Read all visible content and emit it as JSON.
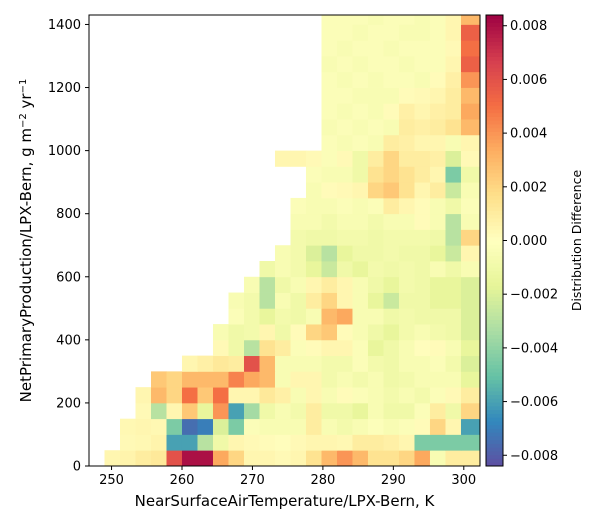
{
  "chart_data": {
    "type": "heatmap",
    "title": "",
    "xlabel": "NearSurfaceAirTemperature/LPX-Bern,  K",
    "ylabel_text": "NetPrimaryProduction/LPX-Bern,  g m",
    "ylabel_exp1": "−2",
    "ylabel_mid": " yr",
    "ylabel_exp2": "−1",
    "xlim": [
      246.8,
      302.3
    ],
    "ylim": [
      0,
      1430
    ],
    "x_ticks": [
      250,
      260,
      270,
      280,
      290,
      300
    ],
    "y_ticks": [
      0,
      200,
      400,
      600,
      800,
      1000,
      1200,
      1400
    ],
    "x_bin_edges": [
      246.8,
      249.0,
      251.2,
      253.4,
      255.6,
      257.8,
      260.0,
      262.2,
      264.4,
      266.6,
      268.8,
      271.0,
      273.2,
      275.4,
      277.6,
      279.8,
      282.0,
      284.2,
      286.4,
      288.6,
      290.8,
      293.0,
      295.2,
      297.4,
      299.6,
      302.3
    ],
    "y_bin_edges": [
      0,
      50,
      100,
      150,
      200,
      250,
      300,
      350,
      400,
      450,
      500,
      550,
      600,
      650,
      700,
      750,
      800,
      850,
      900,
      950,
      1000,
      1050,
      1100,
      1150,
      1200,
      1250,
      1300,
      1350,
      1400,
      1430
    ],
    "cells_note_row_index_0_is_bottom": true,
    "cells": [
      [
        null,
        0.0005,
        0.0006,
        0.001,
        0.0012,
        0.006,
        0.008,
        0.008,
        0.0035,
        0.002,
        0.0005,
        0.0005,
        0.0003,
        0.0005,
        0.0015,
        0.003,
        0.004,
        0.003,
        0.0015,
        0.0015,
        0.002,
        0.0035,
        -0.0005,
        0.001,
        0.001
      ],
      [
        null,
        null,
        0.0003,
        0.0004,
        0.0006,
        -0.006,
        -0.006,
        -0.003,
        -0.001,
        0.0005,
        0.0003,
        0.0002,
        0.0001,
        0.0003,
        0.0005,
        0.0005,
        0.0004,
        0.001,
        0.001,
        0.0008,
        0.0005,
        -0.0045,
        -0.0045,
        -0.0045,
        -0.0045
      ],
      [
        null,
        null,
        0.0004,
        0.0005,
        0.0004,
        -0.0045,
        -0.0075,
        -0.007,
        -0.002,
        -0.0045,
        -0.0003,
        -0.0005,
        -0.0005,
        -0.0005,
        0.001,
        -0.0005,
        -0.0008,
        -0.0005,
        -0.0002,
        -0.0005,
        -0.0003,
        0.0002,
        0.002,
        0.0005,
        -0.006
      ],
      [
        null,
        null,
        null,
        0.0003,
        -0.003,
        0.0005,
        0.0025,
        -0.0015,
        0.004,
        -0.006,
        -0.0035,
        -0.001,
        -0.0005,
        -0.0008,
        0.001,
        -0.001,
        -0.001,
        -0.0015,
        -0.0005,
        -0.001,
        -0.001,
        -0.0003,
        0.001,
        -0.001,
        0.002
      ],
      [
        null,
        null,
        null,
        0.0005,
        0.003,
        0.002,
        0.005,
        0.0025,
        0.005,
        0.0005,
        0.0005,
        0.0012,
        0.0008,
        -0.0005,
        0.0005,
        -0.0005,
        0.0002,
        -0.0003,
        -0.0005,
        -0.0008,
        -0.0005,
        -0.0008,
        -0.0003,
        0.0003,
        0.001
      ],
      [
        null,
        null,
        null,
        null,
        0.0025,
        0.002,
        0.003,
        0.003,
        0.003,
        0.0045,
        0.0035,
        0.003,
        -0.0005,
        0.0005,
        0.0005,
        -0.0008,
        -0.0005,
        -0.0008,
        -0.0005,
        -0.001,
        -0.0008,
        -0.0005,
        -0.0005,
        -0.0005,
        -0.0015
      ],
      [
        null,
        null,
        null,
        null,
        null,
        null,
        0.0005,
        0.0008,
        0.0012,
        0.001,
        0.006,
        0.003,
        -0.0005,
        -0.0005,
        -0.0005,
        -0.0008,
        -0.0008,
        -0.0003,
        -0.0008,
        -0.001,
        -0.0005,
        -0.0005,
        -0.0003,
        -0.0008,
        -0.002
      ],
      [
        null,
        null,
        null,
        null,
        null,
        null,
        null,
        null,
        0.0003,
        -0.001,
        -0.003,
        0.0015,
        0.001,
        -0.0003,
        0.0002,
        0.0005,
        0.0005,
        -0.0003,
        -0.0015,
        -0.001,
        -0.0005,
        0.0001,
        0.0002,
        -0.0005,
        -0.0015
      ],
      [
        null,
        null,
        null,
        null,
        null,
        null,
        null,
        null,
        -0.0005,
        -0.001,
        -0.0008,
        0.0005,
        -0.001,
        0.0002,
        0.002,
        0.0025,
        0.0002,
        -0.0005,
        -0.001,
        -0.0015,
        -0.0008,
        -0.0005,
        -0.0008,
        -0.001,
        -0.002
      ],
      [
        null,
        null,
        null,
        null,
        null,
        null,
        null,
        null,
        null,
        -0.0003,
        -0.0008,
        -0.0015,
        -0.0008,
        -0.001,
        -0.0005,
        0.003,
        0.0035,
        -0.0005,
        -0.0005,
        -0.001,
        -0.0008,
        -0.001,
        -0.001,
        -0.001,
        -0.002
      ],
      [
        null,
        null,
        null,
        null,
        null,
        null,
        null,
        null,
        null,
        -0.0005,
        -0.0008,
        -0.003,
        -0.0005,
        -0.001,
        0.001,
        0.002,
        0.0005,
        -0.0005,
        -0.0015,
        -0.0025,
        -0.001,
        -0.001,
        -0.0015,
        -0.0015,
        -0.002
      ],
      [
        null,
        null,
        null,
        null,
        null,
        null,
        null,
        null,
        null,
        null,
        -0.0005,
        -0.003,
        -0.001,
        -0.0005,
        0.0005,
        0.001,
        0.0005,
        -0.0005,
        -0.001,
        -0.0015,
        -0.0008,
        -0.001,
        -0.0015,
        -0.0015,
        -0.002
      ],
      [
        null,
        null,
        null,
        null,
        null,
        null,
        null,
        null,
        null,
        null,
        null,
        -0.001,
        -0.0005,
        -0.0008,
        -0.0015,
        -0.0025,
        -0.001,
        -0.0015,
        -0.0008,
        -0.001,
        -0.0008,
        -0.001,
        -0.0005,
        -0.001,
        -0.0005
      ],
      [
        null,
        null,
        null,
        null,
        null,
        null,
        null,
        null,
        null,
        null,
        null,
        null,
        -0.0005,
        -0.0008,
        -0.002,
        -0.003,
        -0.0015,
        -0.001,
        -0.001,
        -0.0008,
        -0.001,
        -0.001,
        -0.0015,
        -0.0025,
        0.0005
      ],
      [
        null,
        null,
        null,
        null,
        null,
        null,
        null,
        null,
        null,
        null,
        null,
        null,
        null,
        -0.0008,
        -0.001,
        -0.001,
        -0.0008,
        -0.0008,
        -0.001,
        -0.0008,
        -0.0008,
        -0.0008,
        -0.001,
        -0.003,
        0.002
      ],
      [
        null,
        null,
        null,
        null,
        null,
        null,
        null,
        null,
        null,
        null,
        null,
        null,
        null,
        -0.0005,
        -0.0005,
        -0.0008,
        -0.0005,
        -0.0005,
        -0.0008,
        -0.0005,
        -0.0005,
        0.0002,
        -0.0005,
        -0.003,
        -0.0005
      ],
      [
        null,
        null,
        null,
        null,
        null,
        null,
        null,
        null,
        null,
        null,
        null,
        null,
        null,
        -0.0003,
        -0.0005,
        -0.0005,
        -0.0003,
        -0.0005,
        -0.0003,
        0.001,
        0.0005,
        0.0002,
        -0.0005,
        -0.001,
        -0.0003
      ],
      [
        null,
        null,
        null,
        null,
        null,
        null,
        null,
        null,
        null,
        null,
        null,
        null,
        null,
        null,
        -0.0005,
        0.0002,
        0.0003,
        0.0005,
        0.002,
        0.0025,
        0.0015,
        0.0005,
        0.001,
        -0.0025,
        -0.0005
      ],
      [
        null,
        null,
        null,
        null,
        null,
        null,
        null,
        null,
        null,
        null,
        null,
        null,
        null,
        null,
        -0.0003,
        -0.0005,
        -0.0005,
        -0.001,
        0.0015,
        0.002,
        0.0015,
        0.001,
        0.0005,
        -0.0045,
        -0.001
      ],
      [
        null,
        null,
        null,
        null,
        null,
        null,
        null,
        null,
        null,
        null,
        null,
        null,
        0.0005,
        0.0005,
        0.0003,
        -0.0003,
        0.0003,
        -0.001,
        0.001,
        0.002,
        0.001,
        0.001,
        0.0008,
        -0.002,
        0.0003
      ],
      [
        null,
        null,
        null,
        null,
        null,
        null,
        null,
        null,
        null,
        null,
        null,
        null,
        null,
        null,
        null,
        -0.0003,
        -0.0005,
        -0.0003,
        -0.0005,
        0.001,
        0.0008,
        0.0005,
        0.0005,
        -0.0005,
        0.0005
      ],
      [
        null,
        null,
        null,
        null,
        null,
        null,
        null,
        null,
        null,
        null,
        null,
        null,
        null,
        null,
        null,
        -0.0005,
        -0.0003,
        -0.0005,
        -0.0003,
        -0.0005,
        0.001,
        0.0008,
        0.001,
        0.0015,
        0.003
      ],
      [
        null,
        null,
        null,
        null,
        null,
        null,
        null,
        null,
        null,
        null,
        null,
        null,
        null,
        null,
        null,
        -0.0003,
        -0.0005,
        -0.0003,
        -0.0005,
        0.0002,
        0.0008,
        0.0005,
        0.0008,
        0.001,
        0.0035
      ],
      [
        null,
        null,
        null,
        null,
        null,
        null,
        null,
        null,
        null,
        null,
        null,
        null,
        null,
        null,
        null,
        -0.0003,
        -0.0003,
        -0.0005,
        -0.0005,
        -0.0005,
        0.0002,
        0.0003,
        0.0005,
        0.001,
        0.003
      ],
      [
        null,
        null,
        null,
        null,
        null,
        null,
        null,
        null,
        null,
        null,
        null,
        null,
        null,
        null,
        null,
        -0.0003,
        -0.0005,
        -0.0003,
        -0.0005,
        -0.0003,
        -0.0003,
        -0.0005,
        0.0002,
        0.0008,
        0.004
      ],
      [
        null,
        null,
        null,
        null,
        null,
        null,
        null,
        null,
        null,
        null,
        null,
        null,
        null,
        null,
        null,
        -0.0005,
        -0.0003,
        -0.0005,
        -0.0003,
        -0.0003,
        -0.0005,
        -0.0003,
        -0.0003,
        0.0005,
        0.0055
      ],
      [
        null,
        null,
        null,
        null,
        null,
        null,
        null,
        null,
        null,
        null,
        null,
        null,
        null,
        null,
        null,
        -0.0003,
        -0.0005,
        -0.0003,
        -0.0003,
        -0.0005,
        -0.0003,
        -0.0003,
        -0.0003,
        0.0003,
        0.005
      ],
      [
        null,
        null,
        null,
        null,
        null,
        null,
        null,
        null,
        null,
        null,
        null,
        null,
        null,
        null,
        null,
        -0.0003,
        -0.0003,
        -0.0005,
        -0.0003,
        -0.0003,
        -0.0005,
        -0.0005,
        -0.0003,
        0.0005,
        0.0055
      ],
      [
        null,
        null,
        null,
        null,
        null,
        null,
        null,
        null,
        null,
        null,
        null,
        null,
        null,
        null,
        null,
        -0.0003,
        -0.0003,
        -0.0003,
        -0.0005,
        -0.0003,
        -0.0003,
        -0.0005,
        -0.0003,
        0.0005,
        0.003
      ]
    ],
    "colorbar": {
      "label": "Distribution Difference",
      "colormap": "Spectral_r",
      "vmin": -0.0084,
      "vmax": 0.0084,
      "ticks": [
        -0.008,
        -0.006,
        -0.004,
        -0.002,
        0.0,
        0.002,
        0.004,
        0.006,
        0.008
      ],
      "tick_labels": [
        "−0.008",
        "−0.006",
        "−0.004",
        "−0.002",
        "0.000",
        "0.002",
        "0.004",
        "0.006",
        "0.008"
      ]
    },
    "grid": false,
    "legend": "none"
  }
}
